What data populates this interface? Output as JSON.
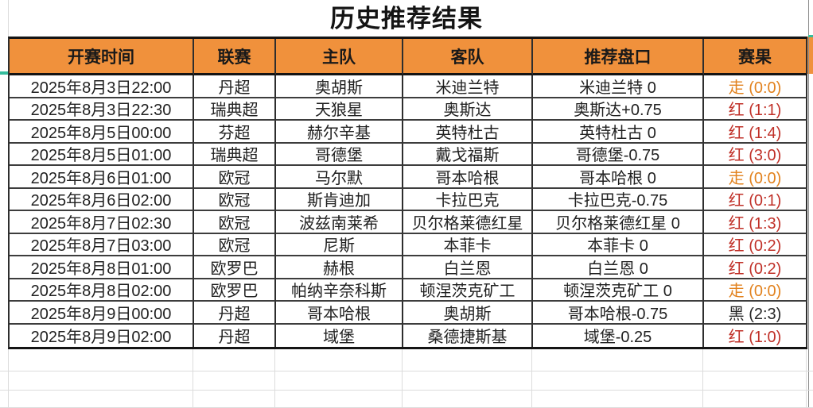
{
  "title": "历史推荐结果",
  "table": {
    "headers": [
      "开赛时间",
      "联赛",
      "主队",
      "客队",
      "推荐盘口",
      "赛果"
    ],
    "rows": [
      {
        "time": "2025年8月3日22:00",
        "league": "丹超",
        "home": "奥胡斯",
        "away": "米迪兰特",
        "handicap": "米迪兰特 0",
        "result": "走 (0:0)",
        "result_type": "push"
      },
      {
        "time": "2025年8月3日22:30",
        "league": "瑞典超",
        "home": "天狼星",
        "away": "奥斯达",
        "handicap": "奥斯达+0.75",
        "result": "红 (1:1)",
        "result_type": "red"
      },
      {
        "time": "2025年8月5日00:00",
        "league": "芬超",
        "home": "赫尔辛基",
        "away": "英特杜古",
        "handicap": "英特杜古 0",
        "result": "红 (1:4)",
        "result_type": "red"
      },
      {
        "time": "2025年8月5日01:00",
        "league": "瑞典超",
        "home": "哥德堡",
        "away": "戴戈福斯",
        "handicap": "哥德堡-0.75",
        "result": "红 (3:0)",
        "result_type": "red"
      },
      {
        "time": "2025年8月6日01:00",
        "league": "欧冠",
        "home": "马尔默",
        "away": "哥本哈根",
        "handicap": "哥本哈根 0",
        "result": "走 (0:0)",
        "result_type": "push"
      },
      {
        "time": "2025年8月6日02:00",
        "league": "欧冠",
        "home": "斯肯迪加",
        "away": "卡拉巴克",
        "handicap": "卡拉巴克-0.75",
        "result": "红 (0:1)",
        "result_type": "red"
      },
      {
        "time": "2025年8月7日02:30",
        "league": "欧冠",
        "home": "波兹南莱希",
        "away": "贝尔格莱德红星",
        "handicap": "贝尔格莱德红星 0",
        "result": "红 (1:3)",
        "result_type": "red"
      },
      {
        "time": "2025年8月7日03:00",
        "league": "欧冠",
        "home": "尼斯",
        "away": "本菲卡",
        "handicap": "本菲卡 0",
        "result": "红 (0:2)",
        "result_type": "red"
      },
      {
        "time": "2025年8月8日01:00",
        "league": "欧罗巴",
        "home": "赫根",
        "away": "白兰恩",
        "handicap": "白兰恩 0",
        "result": "红 (0:2)",
        "result_type": "red"
      },
      {
        "time": "2025年8月8日02:00",
        "league": "欧罗巴",
        "home": "帕纳辛奈科斯",
        "away": "顿涅茨克矿工",
        "handicap": "顿涅茨克矿工 0",
        "result": "走 (0:0)",
        "result_type": "push"
      },
      {
        "time": "2025年8月9日00:00",
        "league": "丹超",
        "home": "哥本哈根",
        "away": "奥胡斯",
        "handicap": "哥本哈根-0.75",
        "result": "黑 (2:3)",
        "result_type": "black"
      },
      {
        "time": "2025年8月9日02:00",
        "league": "丹超",
        "home": "域堡",
        "away": "桑德捷斯基",
        "handicap": "域堡-0.25",
        "result": "红 (1:0)",
        "result_type": "red"
      }
    ]
  },
  "colors": {
    "header_bg": "#F0913C",
    "result_push": "#E2821E",
    "result_red": "#C03028",
    "result_black": "#262626",
    "teal": "#35BD9D"
  }
}
